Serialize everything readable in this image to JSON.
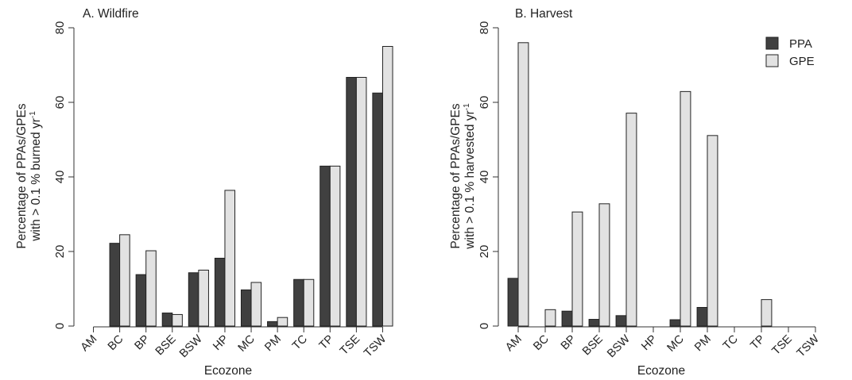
{
  "colors": {
    "ppa": "#404040",
    "gpe": "#e2e2e2"
  },
  "legend": [
    {
      "label": "PPA",
      "color": "#404040"
    },
    {
      "label": "GPE",
      "color": "#e2e2e2"
    }
  ],
  "chart_data": [
    {
      "type": "bar",
      "title": "A. Wildfire",
      "xlabel": "Ecozone",
      "ylabel_line1": "Percentage of PPAs/GPEs",
      "ylabel_line2": "with > 0.1 % burned yr",
      "ylabel_sup": "-1",
      "ylim": [
        0,
        80
      ],
      "yticks": [
        "0",
        "20",
        "40",
        "60",
        "80"
      ],
      "categories": [
        "AM",
        "BC",
        "BP",
        "BSE",
        "BSW",
        "HP",
        "MC",
        "PM",
        "TC",
        "TP",
        "TSE",
        "TSW"
      ],
      "series": [
        {
          "name": "PPA",
          "values": [
            0,
            22.2,
            13.8,
            3.5,
            14.3,
            18.2,
            9.7,
            1.2,
            12.5,
            42.9,
            66.7,
            62.5
          ]
        },
        {
          "name": "GPE",
          "values": [
            0,
            24.5,
            20.2,
            3.1,
            15.0,
            36.4,
            11.7,
            2.3,
            12.5,
            42.9,
            66.7,
            75.0
          ]
        }
      ],
      "grid": false,
      "legend": "none"
    },
    {
      "type": "bar",
      "title": "B. Harvest",
      "xlabel": "Ecozone",
      "ylabel_line1": "Percentage of PPAs/GPEs",
      "ylabel_line2": "with > 0.1 % harvested yr",
      "ylabel_sup": "-1",
      "ylim": [
        0,
        80
      ],
      "yticks": [
        "0",
        "20",
        "40",
        "60",
        "80"
      ],
      "categories": [
        "AM",
        "BC",
        "BP",
        "BSE",
        "BSW",
        "HP",
        "MC",
        "PM",
        "TC",
        "TP",
        "TSE",
        "TSW"
      ],
      "series": [
        {
          "name": "PPA",
          "values": [
            12.8,
            0,
            4.0,
            1.8,
            2.8,
            0,
            1.7,
            5.0,
            0,
            0,
            0,
            0
          ]
        },
        {
          "name": "GPE",
          "values": [
            76.0,
            4.4,
            30.6,
            32.8,
            57.1,
            0,
            62.9,
            51.1,
            0,
            7.1,
            0,
            0
          ]
        }
      ],
      "grid": false,
      "legend": "top-right"
    }
  ]
}
